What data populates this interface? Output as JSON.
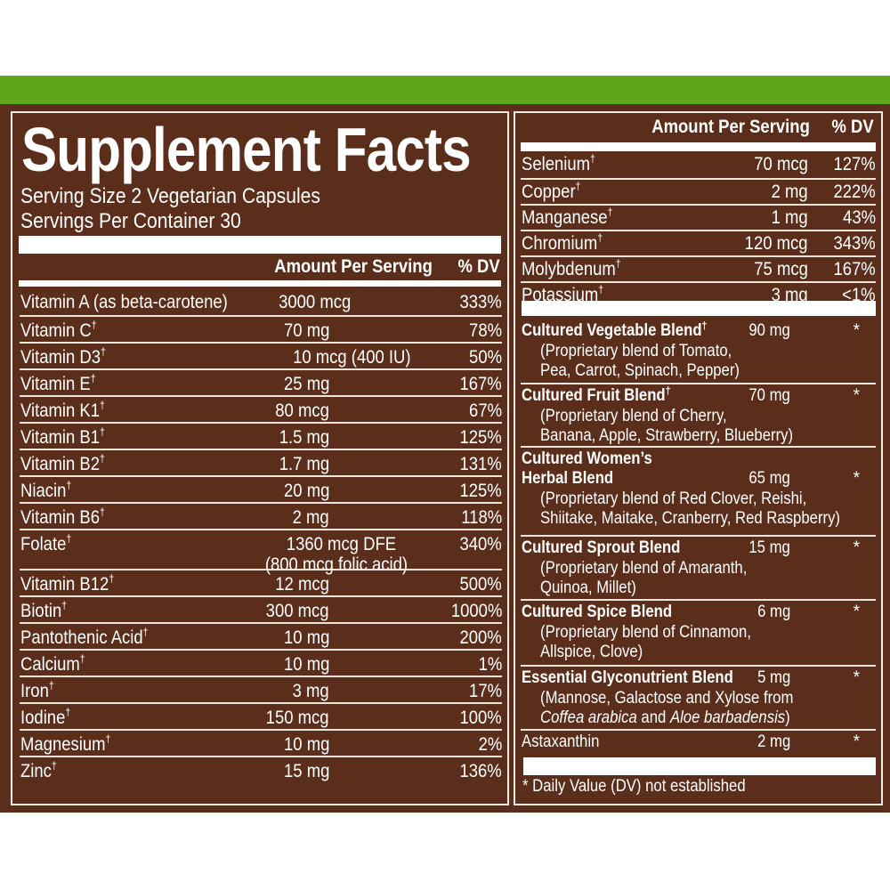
{
  "label": {
    "title": "Supplement Facts",
    "serving_size": "Serving Size 2 Vegetarian Capsules",
    "servings_per_container": "Servings Per Container 30",
    "header_amount": "Amount Per Serving",
    "header_dv": "% DV",
    "dagger": "†",
    "left_rows": [
      {
        "name": "Vitamin A (as beta-carotene)",
        "dagger": false,
        "amount": "3000 mcg",
        "dv": "333%"
      },
      {
        "name": "Vitamin C",
        "dagger": true,
        "amount": "70 mg",
        "dv": "78%"
      },
      {
        "name": "Vitamin D3",
        "dagger": true,
        "amount": "10 mcg (400 IU)",
        "dv": "50%"
      },
      {
        "name": "Vitamin E",
        "dagger": true,
        "amount": "25 mg",
        "dv": "167%"
      },
      {
        "name": "Vitamin K1",
        "dagger": true,
        "amount": "80 mcg",
        "dv": "67%"
      },
      {
        "name": "Vitamin B1",
        "dagger": true,
        "amount": "1.5 mg",
        "dv": "125%"
      },
      {
        "name": "Vitamin B2",
        "dagger": true,
        "amount": "1.7 mg",
        "dv": "131%"
      },
      {
        "name": "Niacin",
        "dagger": true,
        "amount": "20 mg",
        "dv": "125%"
      },
      {
        "name": "Vitamin B6",
        "dagger": true,
        "amount": "2 mg",
        "dv": "118%"
      },
      {
        "name": "Folate",
        "dagger": true,
        "amount": "1360 mcg DFE",
        "amount2": "(800 mcg folic acid)",
        "dv": "340%"
      },
      {
        "name": "Vitamin B12",
        "dagger": true,
        "amount": "12 mcg",
        "dv": "500%"
      },
      {
        "name": "Biotin",
        "dagger": true,
        "amount": "300 mcg",
        "dv": "1000%"
      },
      {
        "name": "Pantothenic Acid",
        "dagger": true,
        "amount": "10 mg",
        "dv": "200%"
      },
      {
        "name": "Calcium",
        "dagger": true,
        "amount": "10 mg",
        "dv": "1%"
      },
      {
        "name": "Iron",
        "dagger": true,
        "amount": "3 mg",
        "dv": "17%"
      },
      {
        "name": "Iodine",
        "dagger": true,
        "amount": "150 mcg",
        "dv": "100%"
      },
      {
        "name": "Magnesium",
        "dagger": true,
        "amount": "10 mg",
        "dv": "2%"
      },
      {
        "name": "Zinc",
        "dagger": true,
        "amount": "15 mg",
        "dv": "136%"
      }
    ],
    "right_rows": [
      {
        "name": "Selenium",
        "dagger": true,
        "amount": "70 mcg",
        "dv": "127%"
      },
      {
        "name": "Copper",
        "dagger": true,
        "amount": "2 mg",
        "dv": "222%"
      },
      {
        "name": "Manganese",
        "dagger": true,
        "amount": "1 mg",
        "dv": "43%"
      },
      {
        "name": "Chromium",
        "dagger": true,
        "amount": "120 mcg",
        "dv": "343%"
      },
      {
        "name": "Molybdenum",
        "dagger": true,
        "amount": "75 mcg",
        "dv": "167%"
      },
      {
        "name": "Potassium",
        "dagger": true,
        "amount": "3 mg",
        "dv": "<1%"
      }
    ],
    "blends": [
      {
        "name": "Cultured Vegetable Blend",
        "dagger": true,
        "amount": "90 mg",
        "dv": "*",
        "desc": [
          "(Proprietary blend of Tomato,",
          "Pea, Carrot, Spinach, Pepper)"
        ]
      },
      {
        "name": "Cultured Fruit Blend",
        "dagger": true,
        "amount": "70 mg",
        "dv": "*",
        "desc": [
          "(Proprietary blend of Cherry,",
          "Banana, Apple, Strawberry, Blueberry)"
        ]
      },
      {
        "name": "Cultured Women’s",
        "name2": "Herbal Blend",
        "dagger": false,
        "amount": "65 mg",
        "dv": "*",
        "desc": [
          "(Proprietary blend of Red Clover, Reishi,",
          "Shiitake, Maitake, Cranberry, Red Raspberry)"
        ]
      },
      {
        "name": "Cultured Sprout Blend",
        "dagger": false,
        "amount": "15 mg",
        "dv": "*",
        "desc": [
          "(Proprietary blend of Amaranth,",
          "Quinoa, Millet)"
        ]
      },
      {
        "name": "Cultured Spice Blend",
        "dagger": false,
        "amount": "6 mg",
        "dv": "*",
        "desc": [
          "(Proprietary blend of Cinnamon,",
          "Allspice, Clove)"
        ]
      },
      {
        "name": "Essential Glyconutrient Blend",
        "dagger": false,
        "amount": "5 mg",
        "dv": "*",
        "desc": [
          "(Mannose, Galactose and Xylose from"
        ],
        "desc_italic_1": "Coffea arabica",
        "desc_mid": " and ",
        "desc_italic_2": "Aloe barbadensis",
        "desc_end": ")"
      }
    ],
    "astaxanthin": {
      "name": "Astaxanthin",
      "amount": "2 mg",
      "dv": "*"
    },
    "footnote": "* Daily Value (DV) not established"
  },
  "colors": {
    "green": "#5fa61c",
    "brown": "#5b2e1c",
    "text": "#ffffff"
  }
}
